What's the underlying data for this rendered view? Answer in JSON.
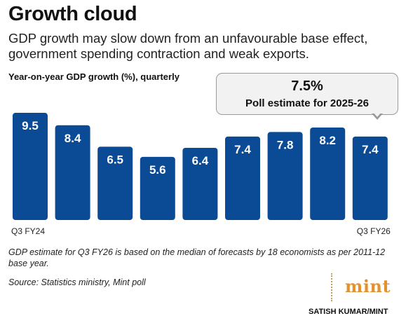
{
  "header": {
    "title": "Growth cloud",
    "subtitle": "GDP growth may slow down from an unfavourable base effect, government spending contraction and weak exports."
  },
  "chart_data": {
    "type": "bar",
    "ylabel": "Year-on-year GDP growth (%), quarterly",
    "values": [
      9.5,
      8.4,
      6.5,
      5.6,
      6.4,
      7.4,
      7.8,
      8.2,
      7.4
    ],
    "value_labels": [
      "9.5",
      "8.4",
      "6.5",
      "5.6",
      "6.4",
      "7.4",
      "7.8",
      "8.2",
      "7.4"
    ],
    "tick_labels": [
      "Q3 FY24",
      "",
      "",
      "",
      "",
      "",
      "",
      "",
      "Q3 FY26"
    ],
    "bar_color": "#0b4a94",
    "grid": false,
    "annotation": {
      "value": "7.5%",
      "label": "Poll estimate for 2025-26",
      "points_to": "Q3 FY26"
    }
  },
  "footer": {
    "footnote": "GDP estimate for Q3 FY26 is based on the median of forecasts by 18 economists as per 2011-12 base year.",
    "source": "Source: Statistics ministry, Mint poll",
    "logo": "mint",
    "credit": "SATISH KUMAR/MINT"
  }
}
